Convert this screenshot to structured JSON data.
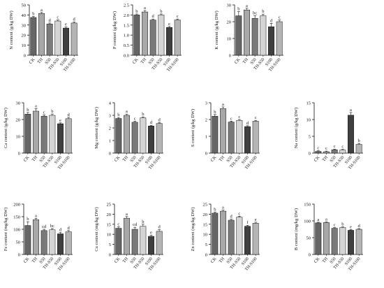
{
  "figure": {
    "bar_colors": [
      "#666666",
      "#a8a8a8",
      "#7a7a7a",
      "#d4d4d4",
      "#3f3f3f",
      "#b4b4b4"
    ],
    "axis_color": "#111111"
  },
  "chart_data": [
    {
      "type": "bar",
      "ylabel": "N content (g/kg DW)",
      "ylim": [
        0,
        50
      ],
      "yticks": [
        0,
        10,
        20,
        30,
        40,
        50
      ],
      "categories": [
        "CK",
        "TH",
        "S50",
        "TH-S50",
        "S100",
        "TH-S100"
      ],
      "values": [
        37.5,
        41.5,
        31,
        34,
        27,
        32
      ],
      "errors": [
        1,
        1,
        1,
        1,
        1,
        1
      ],
      "letters": [
        "b",
        "a",
        "d",
        "c",
        "e",
        "d"
      ]
    },
    {
      "type": "bar",
      "ylabel": "P content (g/kg DW)",
      "ylim": [
        0,
        2.5
      ],
      "yticks": [
        "0.0",
        "0.5",
        "1.0",
        "1.5",
        "2.0",
        "2.5"
      ],
      "categories": [
        "CK",
        "TH",
        "S50",
        "TH-S50",
        "S100",
        "TH-S100"
      ],
      "values": [
        2.0,
        2.15,
        1.75,
        2.0,
        1.38,
        1.75
      ],
      "errors": [
        0.05,
        0.07,
        0.05,
        0.05,
        0.05,
        0.05
      ],
      "letters": [
        "b",
        "a",
        "d",
        "b",
        "e",
        "c"
      ]
    },
    {
      "type": "bar",
      "ylabel": "K content (g/kg DW)",
      "ylim": [
        0,
        30
      ],
      "yticks": [
        0,
        10,
        20,
        30
      ],
      "categories": [
        "CK",
        "TH",
        "S50",
        "TH-S50",
        "S100",
        "TH-S100"
      ],
      "values": [
        23.5,
        27,
        22,
        23.5,
        17,
        20
      ],
      "errors": [
        2.5,
        1,
        1.5,
        1,
        2,
        1
      ],
      "letters": [
        "b",
        "a",
        "bc",
        "b",
        "d",
        "c"
      ]
    },
    {
      "type": "bar",
      "ylabel": "Ca content (g/kg DW)",
      "ylim": [
        0,
        30
      ],
      "yticks": [
        0,
        10,
        20,
        30
      ],
      "categories": [
        "CK",
        "TH",
        "S50",
        "TH-S50",
        "S100",
        "TH-S100"
      ],
      "values": [
        23.2,
        25,
        22,
        22.5,
        17.5,
        20.5
      ],
      "errors": [
        1,
        1.5,
        0.8,
        0.8,
        0.5,
        0.8
      ],
      "letters": [
        "b",
        "a",
        "c",
        "b",
        "e",
        "d"
      ]
    },
    {
      "type": "bar",
      "ylabel": "Mg content (g/kg DW)",
      "ylim": [
        0,
        4
      ],
      "yticks": [
        0,
        1,
        2,
        3,
        4
      ],
      "categories": [
        "CK",
        "TH",
        "S50",
        "TH-S50",
        "S100",
        "TH-S100"
      ],
      "values": [
        2.75,
        3.0,
        2.45,
        2.8,
        2.15,
        2.35
      ],
      "errors": [
        0.08,
        0.1,
        0.08,
        0.08,
        0.06,
        0.08
      ],
      "letters": [
        "b",
        "a",
        "c",
        "b",
        "d",
        "d"
      ]
    },
    {
      "type": "bar",
      "ylabel": "S content (g/kg DW)",
      "ylim": [
        0,
        3
      ],
      "yticks": [
        0,
        1,
        2,
        3
      ],
      "categories": [
        "CK",
        "TH",
        "S50",
        "TH-S50",
        "S100",
        "TH-S100"
      ],
      "values": [
        2.2,
        2.65,
        1.85,
        1.95,
        1.58,
        1.9
      ],
      "errors": [
        0.1,
        0.1,
        0.05,
        0.05,
        0.05,
        0.05
      ],
      "letters": [
        "b",
        "a",
        "c",
        "c",
        "d",
        "c"
      ]
    },
    {
      "type": "bar",
      "ylabel": "Na content (g/kg DW)",
      "ylim": [
        0,
        15
      ],
      "yticks": [
        0,
        5,
        10,
        15
      ],
      "categories": [
        "CK",
        "TH",
        "S50",
        "TH-S50",
        "S100",
        "TH-S100"
      ],
      "values": [
        0.5,
        0.4,
        1.0,
        0.9,
        11.3,
        2.6
      ],
      "errors": [
        0.2,
        0.2,
        0.2,
        0.2,
        0.8,
        0.3
      ],
      "letters": [
        "c",
        "c",
        "c",
        "c",
        "a",
        "b"
      ]
    },
    {
      "type": "bar",
      "ylabel": "Fe content (mg/kg DW)",
      "ylim": [
        0,
        200
      ],
      "yticks": [
        0,
        50,
        100,
        150,
        200
      ],
      "categories": [
        "CK",
        "TH",
        "S50",
        "TH-S50",
        "S100",
        "TH-S100"
      ],
      "values": [
        115,
        138,
        95,
        98,
        82,
        90
      ],
      "errors": [
        15,
        5,
        5,
        5,
        5,
        5
      ],
      "letters": [
        "b",
        "a",
        "cd",
        "bc",
        "d",
        "d"
      ]
    },
    {
      "type": "bar",
      "ylabel": "Cu content (mg/kg DW)",
      "ylim": [
        0,
        25
      ],
      "yticks": [
        0,
        5,
        10,
        15,
        20,
        25
      ],
      "categories": [
        "CK",
        "TH",
        "S50",
        "TH-S50",
        "S100",
        "TH-S100"
      ],
      "values": [
        13,
        18,
        12.5,
        14,
        9,
        11.5
      ],
      "errors": [
        0.8,
        0.8,
        1,
        1,
        0.5,
        0.8
      ],
      "letters": [
        "c",
        "a",
        "cd",
        "b",
        "e",
        "d"
      ]
    },
    {
      "type": "bar",
      "ylabel": "Zn content (mg/kg DW)",
      "ylim": [
        0,
        25
      ],
      "yticks": [
        0,
        5,
        10,
        15,
        20,
        25
      ],
      "categories": [
        "CK",
        "TH",
        "S50",
        "TH-S50",
        "S100",
        "TH-S100"
      ],
      "values": [
        20.5,
        21.5,
        17,
        18.5,
        14,
        15.5
      ],
      "errors": [
        0.5,
        0.5,
        0.5,
        0.5,
        0.5,
        0.5
      ],
      "letters": [
        "b",
        "a",
        "d",
        "c",
        "f",
        "e"
      ]
    },
    {
      "type": "bar",
      "ylabel": "B content (mg/kg DW)",
      "ylim": [
        0,
        150
      ],
      "yticks": [
        0,
        50,
        100,
        150
      ],
      "categories": [
        "CK",
        "TH",
        "S50",
        "TH-S50",
        "S100",
        "TH-S100"
      ],
      "values": [
        94,
        95,
        78,
        80,
        72,
        75
      ],
      "errors": [
        2,
        2,
        2,
        2,
        2,
        2
      ],
      "letters": [
        "a",
        "a",
        "c",
        "b",
        "e",
        "d"
      ]
    }
  ]
}
